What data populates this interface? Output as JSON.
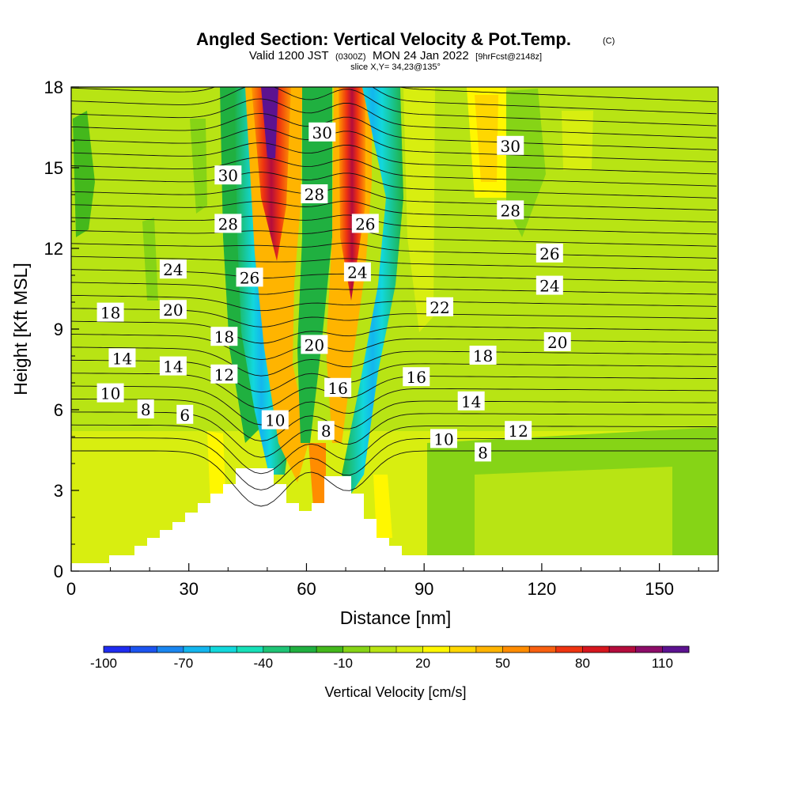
{
  "chart_data": {
    "type": "heatmap",
    "title": "Angled Section: Vertical Velocity & Pot.Temp.",
    "title_mark": "(C)",
    "subtitle_parts": {
      "valid": "Valid 1200 JST",
      "utc": "(0300Z)",
      "date": "MON 24 Jan 2022",
      "fcst": "[9hrFcst@2148z]"
    },
    "slice_text": "slice X,Y= 34,23@135°",
    "xlabel": "Distance [nm]",
    "ylabel": "Height [Kft MSL]",
    "xlim": [
      0,
      165
    ],
    "ylim": [
      0,
      18
    ],
    "x_ticks": [
      "0",
      "30",
      "60",
      "90",
      "120",
      "150"
    ],
    "y_ticks": [
      "0",
      "3",
      "6",
      "9",
      "12",
      "15",
      "18"
    ],
    "colorbar": {
      "title": "Vertical Velocity [cm/s]",
      "tick_labels": [
        "-100",
        "-70",
        "-40",
        "-10",
        "20",
        "50",
        "80",
        "110"
      ],
      "colors": [
        "#1f2cf0",
        "#1c54f0",
        "#1a86f0",
        "#13b6ee",
        "#12d8dc",
        "#17e0b8",
        "#1fc476",
        "#20b040",
        "#44b81c",
        "#86d416",
        "#b8e414",
        "#d8ee10",
        "#fff700",
        "#ffd700",
        "#ffb400",
        "#ff8c00",
        "#f86010",
        "#ee3410",
        "#d6161e",
        "#b40c3c",
        "#8c0c68",
        "#5c1290"
      ]
    },
    "contour_labels": [
      {
        "text": "30",
        "x": 40,
        "y": 14.7
      },
      {
        "text": "28",
        "x": 40,
        "y": 12.9
      },
      {
        "text": "24",
        "x": 26,
        "y": 11.2
      },
      {
        "text": "26",
        "x": 45.5,
        "y": 10.9
      },
      {
        "text": "18",
        "x": 10,
        "y": 9.6
      },
      {
        "text": "20",
        "x": 26,
        "y": 9.7
      },
      {
        "text": "18",
        "x": 39,
        "y": 8.7
      },
      {
        "text": "14",
        "x": 13,
        "y": 7.9
      },
      {
        "text": "14",
        "x": 26,
        "y": 7.6
      },
      {
        "text": "12",
        "x": 39,
        "y": 7.3
      },
      {
        "text": "10",
        "x": 10,
        "y": 6.6
      },
      {
        "text": "8",
        "x": 19,
        "y": 6.0
      },
      {
        "text": "6",
        "x": 29,
        "y": 5.8
      },
      {
        "text": "10",
        "x": 52,
        "y": 5.6
      },
      {
        "text": "30",
        "x": 64,
        "y": 16.3
      },
      {
        "text": "28",
        "x": 62,
        "y": 14.0
      },
      {
        "text": "26",
        "x": 75,
        "y": 12.9
      },
      {
        "text": "24",
        "x": 73,
        "y": 11.1
      },
      {
        "text": "20",
        "x": 62,
        "y": 8.4
      },
      {
        "text": "16",
        "x": 68,
        "y": 6.8
      },
      {
        "text": "8",
        "x": 65,
        "y": 5.2
      },
      {
        "text": "22",
        "x": 94,
        "y": 9.8
      },
      {
        "text": "16",
        "x": 88,
        "y": 7.2
      },
      {
        "text": "18",
        "x": 105,
        "y": 8.0
      },
      {
        "text": "14",
        "x": 102,
        "y": 6.3
      },
      {
        "text": "10",
        "x": 95,
        "y": 4.9
      },
      {
        "text": "8",
        "x": 105,
        "y": 4.4
      },
      {
        "text": "12",
        "x": 114,
        "y": 5.2
      },
      {
        "text": "20",
        "x": 124,
        "y": 8.5
      },
      {
        "text": "24",
        "x": 122,
        "y": 10.6
      },
      {
        "text": "26",
        "x": 122,
        "y": 11.8
      },
      {
        "text": "28",
        "x": 112,
        "y": 13.4
      },
      {
        "text": "30",
        "x": 112,
        "y": 15.8
      }
    ]
  }
}
